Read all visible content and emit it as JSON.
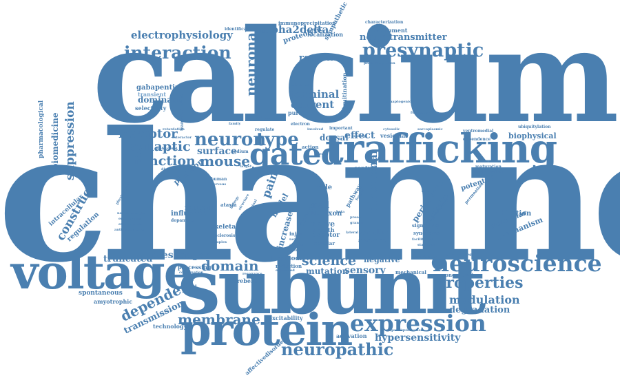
{
  "colors": {
    "primary": "#4a7fb0",
    "light": "#7aa5cc",
    "pale": "#a9c6e0",
    "background": "#ffffff"
  },
  "words": {
    "channel": "channel",
    "calcium": "calcium",
    "subunit": "subunit",
    "trafficking": "trafficking",
    "voltage": "voltage",
    "protein": "protein",
    "neuroscience": "neuroscience",
    "expression": "expression",
    "gated": "gated",
    "presynaptic": "presynaptic",
    "interaction": "interaction",
    "neuron": "neuron",
    "type": "type",
    "properties": "properties",
    "neuropathic": "neuropathic",
    "membrane": "membrane",
    "domain": "domain",
    "mouse": "mouse",
    "function": "function",
    "synaptic": "synaptic",
    "receptor": "receptor",
    "surface": "surface",
    "science": "science",
    "modulation": "modulation",
    "neuronal": "neuronal",
    "alpha2delta": "alpha2delta",
    "electrophysiology": "electrophysiology",
    "neurotransmitter": "neurotransmitter",
    "response": "response",
    "dependent": "dependent",
    "transmission": "transmission",
    "suppression": "suppression",
    "construct": "construct",
    "hypersensitivity": "hypersensitivity",
    "degradation": "degradation",
    "messenger": "messenger",
    "truncated": "truncated",
    "terminal": "terminal",
    "current": "current",
    "dominant": "dominant",
    "gabapentin": "gabapentin",
    "transient": "transient",
    "selectivity": "selectivity",
    "effect": "effect",
    "dorsal": "dorsal",
    "biophysical": "biophysical",
    "mechanism": "mechanism",
    "molecular": "molecular",
    "inhibition": "inhibition",
    "potential": "potential",
    "functional": "functional",
    "pain": "pain",
    "cell": "cell",
    "nerve": "nerve",
    "mutation": "mutation",
    "sensory": "sensory",
    "negative": "negative",
    "episodic": "episodic",
    "reduction": "reduction",
    "cerebellar": "cerebellar",
    "processing": "processing",
    "skeletal": "skeletal",
    "mutant": "mutant",
    "influence": "influence",
    "plasmon": "plasmon",
    "spontaneous": "spontaneous",
    "amyotrophic": "amyotrophic",
    "technology": "technology",
    "excitability": "excitability",
    "activation": "activation",
    "affectivedisorders": "affectivedisorders",
    "pharmacological": "pharmacological",
    "biomedicine": "biomedicine",
    "intracellular": "intracellular",
    "regulation": "regulation",
    "proteolytic": "proteolytic",
    "localization": "localization",
    "identification": "identification",
    "immunoprecipitation": "immunoprecipitation",
    "sympathetic": "sympathetic",
    "characterization": "characterization",
    "development": "development",
    "phosphorylation": "phosphorylation",
    "ubiquitination": "ubiquitination",
    "purkinje": "purkinje",
    "calorimetry": "calorimetry",
    "ganglion": "ganglion",
    "absence": "absence",
    "adaptor": "adaptor",
    "growth": "growth",
    "increase": "increase",
    "model": "model",
    "axon": "axon",
    "role": "role",
    "concentration": "concentration",
    "pharmacology": "pharmacology",
    "peripheral": "peripheral",
    "pregabalin": "pregabalin",
    "signalling": "signalling",
    "syndrome": "syndrome",
    "control": "control",
    "vesicular": "vesicular",
    "mechanical": "mechanical",
    "ubiquitylation": "ubiquitylation",
    "ventromedial": "ventromedial",
    "dependence": "dependence",
    "maturation": "maturation",
    "independent": "independent",
    "permeation": "permeation",
    "ataxia": "ataxia",
    "sclerosis": "sclerosis",
    "human": "human",
    "regulate": "regulate",
    "transmembrane": "transmembrane",
    "complex": "complex",
    "induced": "induced",
    "sodium": "sodium",
    "electron": "electron",
    "important": "important",
    "involved": "involved",
    "action": "action",
    "release": "release",
    "diabetes": "diabetes",
    "physiological": "physiological",
    "dopamine": "dopamine",
    "noradrenergic": "noradrenergic",
    "endogenous": "endogenous",
    "experimental": "experimental",
    "antinociceptive": "antinociceptive",
    "cellular": "cellular",
    "present": "present",
    "granule": "granule",
    "behavioral": "behavioral",
    "target": "target",
    "interactor": "interactor",
    "retardation": "retardation",
    "cytosolic": "cytosolic",
    "psychiatric": "psychiatric",
    "synaptogenic": "synaptogenic",
    "oligoubiquitination": "oligoubiquitination",
    "facilitation": "facilitation",
    "sarcoplasmic": "sarcoplasmic",
    "nervous": "nervous",
    "combination": "combination",
    "expressed": "expressed",
    "lateral": "lateral",
    "biology": "biology",
    "spinal": "spinal",
    "structure": "structure",
    "novel": "novel",
    "activity": "activity",
    "efficacy": "efficacy",
    "injury": "injury",
    "reverse": "reverse",
    "life": "life",
    "family": "family",
    "pathway": "pathway",
    "fragile": "fragile",
    "beta": "beta",
    "loading": "loading",
    "resonance": "resonance",
    "kinase": "kinase",
    "stargazer": "stargazer",
    "investigation": "investigation",
    "interaction_small": "functionally"
  }
}
